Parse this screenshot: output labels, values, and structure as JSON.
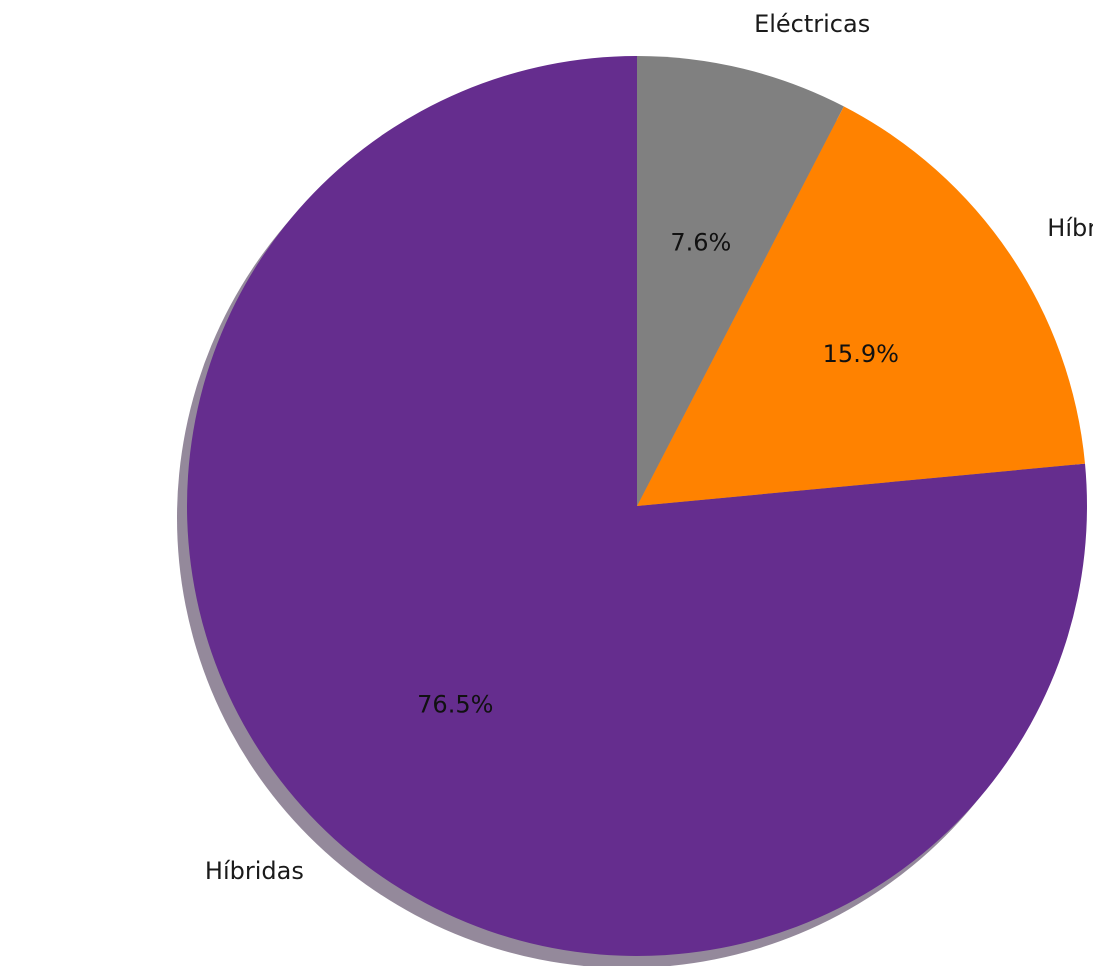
{
  "chart_data": {
    "type": "pie",
    "title": "",
    "start_angle_deg": 90,
    "direction": "counterclockwise",
    "shadow": true,
    "slices": [
      {
        "label": "Híbridas",
        "value": 76.5,
        "pct_label": "76.5%",
        "color": "#652d8e"
      },
      {
        "label": "Híbridas Plugin",
        "value": 15.9,
        "pct_label": "15.9%",
        "color": "#ff8200"
      },
      {
        "label": "Eléctricas",
        "value": 7.6,
        "pct_label": "7.6%",
        "color": "#808080"
      }
    ]
  }
}
